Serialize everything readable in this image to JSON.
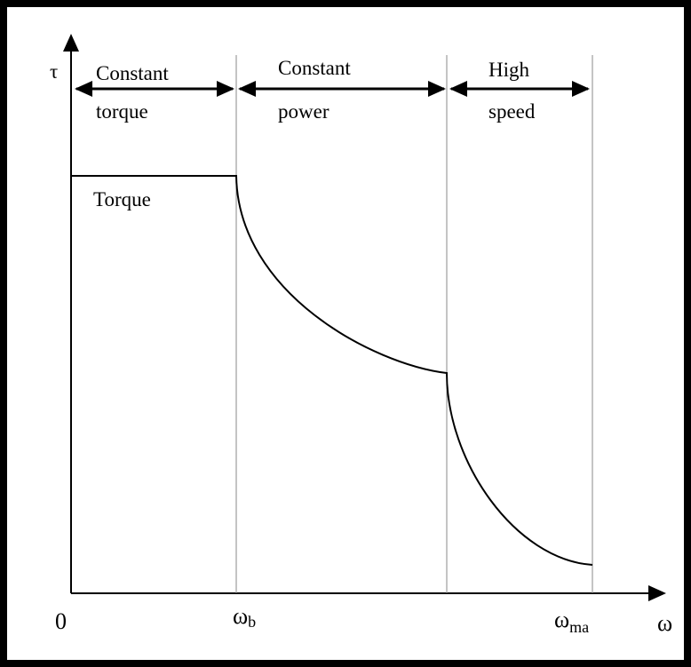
{
  "axes": {
    "y_label": "τ",
    "x_label": "ω",
    "origin": "0"
  },
  "regions": [
    {
      "lines": [
        "Constant",
        "torque"
      ]
    },
    {
      "lines": [
        "Constant",
        "power"
      ]
    },
    {
      "lines": [
        "High",
        "speed"
      ]
    }
  ],
  "curve_label": "Torque",
  "x_marks": [
    {
      "main": "ω",
      "sub": "b"
    },
    {
      "main": "ω",
      "sub": "ma"
    }
  ]
}
